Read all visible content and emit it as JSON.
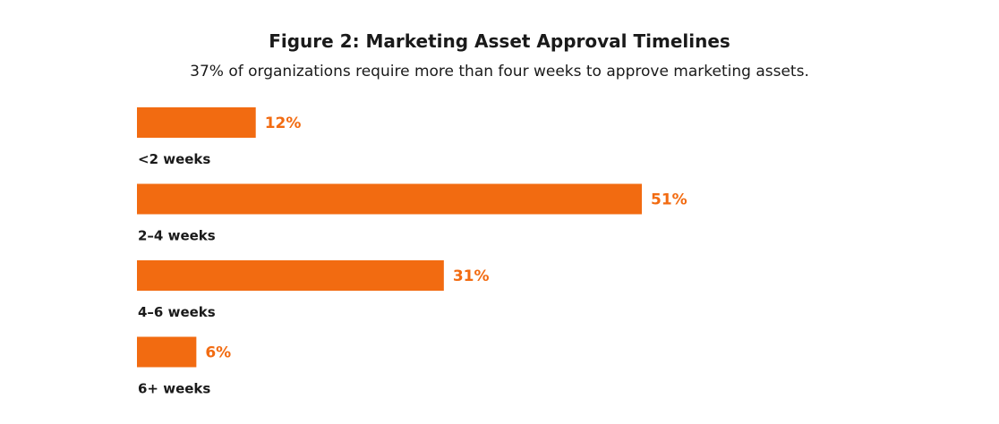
{
  "chart_data": {
    "type": "bar",
    "orientation": "horizontal",
    "title": "Figure 2: Marketing Asset Approval Timelines",
    "subtitle": "37% of organizations require more than four weeks to approve marketing assets.",
    "categories": [
      "<2 weeks",
      "2–4 weeks",
      "4–6 weeks",
      "6+ weeks"
    ],
    "values": [
      12,
      51,
      31,
      6
    ],
    "value_labels": [
      "12%",
      "51%",
      "31%",
      "6%"
    ],
    "xlim": [
      0,
      51
    ],
    "grid": false,
    "legend": "none",
    "colors": {
      "bar": "#f26b11",
      "value_label": "#f26b11",
      "category_label": "#1a1a1a"
    }
  }
}
